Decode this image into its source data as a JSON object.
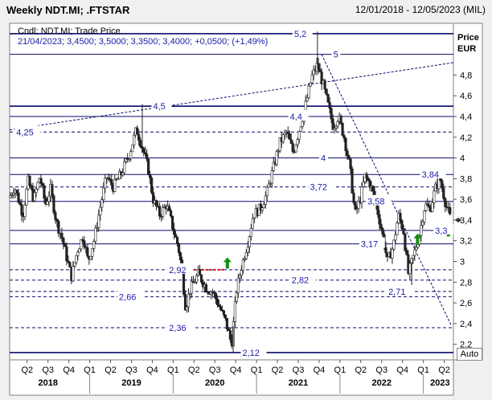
{
  "header": {
    "title": "Weekly NDT.MI; .FTSTAR",
    "range": "12/01/2018 - 12/05/2023 (MIL)"
  },
  "legend": {
    "line1": "Cndl; NDT.MI; Trade Price",
    "line2": "21/04/2023; 3,4500; 3,5000; 3,3500; 3,4000; +0,0500; (+1,49%)"
  },
  "auto_label": "Auto",
  "chart_data": {
    "type": "candlestick",
    "title": "Weekly NDT.MI; .FTSTAR",
    "ylabel": "Price EUR",
    "ylabel_lines": [
      "Price",
      "EUR"
    ],
    "ylim": [
      2.05,
      5.3
    ],
    "y_ticks": [
      "4,8",
      "4,6",
      "4,4",
      "4,2",
      "4",
      "3,8",
      "3,6",
      "3,4",
      "3,2",
      "3",
      "2,8",
      "2,6",
      "2,4",
      "2,2"
    ],
    "y_tick_values": [
      4.8,
      4.6,
      4.4,
      4.2,
      4.0,
      3.8,
      3.6,
      3.4,
      3.2,
      3.0,
      2.8,
      2.6,
      2.4,
      2.2
    ],
    "last_price": 3.4,
    "x_ticks": [
      "Q2",
      "Q3",
      "Q4",
      "Q1",
      "Q2",
      "Q3",
      "Q4",
      "Q1",
      "Q2",
      "Q3",
      "Q4",
      "Q1",
      "Q2",
      "Q3",
      "Q4",
      "Q1",
      "Q2",
      "Q3",
      "Q4",
      "Q1",
      "Q2"
    ],
    "x_tick_values": [
      2018.25,
      2018.5,
      2018.75,
      2019.0,
      2019.25,
      2019.5,
      2019.75,
      2020.0,
      2020.25,
      2020.5,
      2020.75,
      2021.0,
      2021.25,
      2021.5,
      2021.75,
      2022.0,
      2022.25,
      2022.5,
      2022.75,
      2023.0,
      2023.25
    ],
    "years": [
      "2018",
      "2019",
      "2020",
      "2021",
      "2022",
      "2023"
    ],
    "year_values": [
      2018.5,
      2019.5,
      2020.5,
      2021.5,
      2022.5,
      2023.2
    ],
    "xlim": [
      2018.04,
      2023.36
    ],
    "levels": [
      {
        "label": "5,2",
        "value": 5.2,
        "style": "solid"
      },
      {
        "label": "5",
        "value": 5.0,
        "style": "solid"
      },
      {
        "label": "4,5",
        "value": 4.5,
        "style": "solid"
      },
      {
        "label": "4,4",
        "value": 4.4,
        "style": "solid"
      },
      {
        "label": "4,25",
        "value": 4.25,
        "style": "dashed"
      },
      {
        "label": "4",
        "value": 4.0,
        "style": "solid"
      },
      {
        "label": "3,84",
        "value": 3.84,
        "style": "solid"
      },
      {
        "label": "3,72",
        "value": 3.72,
        "style": "dashed"
      },
      {
        "label": "3,58",
        "value": 3.58,
        "style": "solid"
      },
      {
        "label": "3,3",
        "value": 3.3,
        "style": "solid"
      },
      {
        "label": "3,17",
        "value": 3.17,
        "style": "solid"
      },
      {
        "label": "2,92",
        "value": 2.92,
        "style": "dashed"
      },
      {
        "label": "2,82",
        "value": 2.82,
        "style": "dashed"
      },
      {
        "label": "2,71",
        "value": 2.71,
        "style": "dashed"
      },
      {
        "label": "2,66",
        "value": 2.66,
        "style": "dashed"
      },
      {
        "label": "2,36",
        "value": 2.36,
        "style": "dashed"
      },
      {
        "label": "2,12",
        "value": 2.12,
        "style": "solid"
      }
    ],
    "trendlines": [
      {
        "from": [
          2018.04,
          4.27
        ],
        "to": [
          2023.36,
          4.92
        ],
        "style": "dashed"
      },
      {
        "from": [
          2021.78,
          5.0
        ],
        "to": [
          2023.33,
          2.39
        ],
        "style": "dashed"
      }
    ],
    "resistance_box": {
      "x0": 2020.05,
      "x1": 2020.62,
      "value": 2.92
    },
    "arrows": [
      {
        "x": 2020.65,
        "y": 2.97
      },
      {
        "x": 2022.93,
        "y": 3.2
      },
      {
        "x": 2023.3,
        "y": 3.28
      }
    ],
    "series": [
      {
        "points": [
          [
            2018.04,
            3.62
          ],
          [
            2018.1,
            3.72
          ],
          [
            2018.2,
            3.45
          ],
          [
            2018.26,
            3.78
          ],
          [
            2018.33,
            3.6
          ],
          [
            2018.4,
            3.82
          ],
          [
            2018.47,
            3.55
          ],
          [
            2018.53,
            3.7
          ],
          [
            2018.6,
            3.38
          ],
          [
            2018.66,
            3.25
          ],
          [
            2018.72,
            3.05
          ],
          [
            2018.78,
            2.85
          ],
          [
            2018.85,
            3.1
          ],
          [
            2018.92,
            3.25
          ],
          [
            2018.98,
            3.0
          ],
          [
            2019.05,
            3.2
          ],
          [
            2019.12,
            3.5
          ],
          [
            2019.2,
            3.82
          ],
          [
            2019.28,
            3.72
          ],
          [
            2019.38,
            3.85
          ],
          [
            2019.48,
            4.05
          ],
          [
            2019.56,
            4.28
          ],
          [
            2019.63,
            4.1
          ],
          [
            2019.7,
            3.9
          ],
          [
            2019.76,
            3.6
          ],
          [
            2019.84,
            3.45
          ],
          [
            2019.92,
            3.55
          ],
          [
            2019.98,
            3.38
          ],
          [
            2020.02,
            3.25
          ],
          [
            2020.06,
            3.15
          ],
          [
            2020.1,
            2.95
          ],
          [
            2020.15,
            2.55
          ],
          [
            2020.2,
            2.72
          ],
          [
            2020.3,
            2.88
          ],
          [
            2020.4,
            2.74
          ],
          [
            2020.48,
            2.7
          ],
          [
            2020.56,
            2.55
          ],
          [
            2020.63,
            2.42
          ],
          [
            2020.7,
            2.2
          ],
          [
            2020.76,
            2.72
          ],
          [
            2020.82,
            2.95
          ],
          [
            2020.9,
            3.2
          ],
          [
            2020.96,
            3.45
          ],
          [
            2021.05,
            3.52
          ],
          [
            2021.12,
            3.65
          ],
          [
            2021.2,
            3.9
          ],
          [
            2021.28,
            4.15
          ],
          [
            2021.36,
            4.25
          ],
          [
            2021.44,
            4.05
          ],
          [
            2021.52,
            4.3
          ],
          [
            2021.6,
            4.55
          ],
          [
            2021.66,
            4.78
          ],
          [
            2021.73,
            4.9
          ],
          [
            2021.8,
            4.7
          ],
          [
            2021.86,
            4.5
          ],
          [
            2021.92,
            4.3
          ],
          [
            2021.98,
            4.4
          ],
          [
            2022.05,
            4.2
          ],
          [
            2022.12,
            3.9
          ],
          [
            2022.18,
            3.45
          ],
          [
            2022.24,
            3.6
          ],
          [
            2022.3,
            3.82
          ],
          [
            2022.36,
            3.75
          ],
          [
            2022.42,
            3.6
          ],
          [
            2022.5,
            3.3
          ],
          [
            2022.57,
            3.0
          ],
          [
            2022.64,
            3.15
          ],
          [
            2022.7,
            3.45
          ],
          [
            2022.76,
            3.3
          ],
          [
            2022.82,
            2.88
          ],
          [
            2022.88,
            3.05
          ],
          [
            2022.95,
            3.25
          ],
          [
            2023.02,
            3.55
          ],
          [
            2023.08,
            3.5
          ],
          [
            2023.14,
            3.7
          ],
          [
            2023.2,
            3.8
          ],
          [
            2023.26,
            3.58
          ],
          [
            2023.33,
            3.4
          ]
        ]
      }
    ],
    "grid": false
  }
}
